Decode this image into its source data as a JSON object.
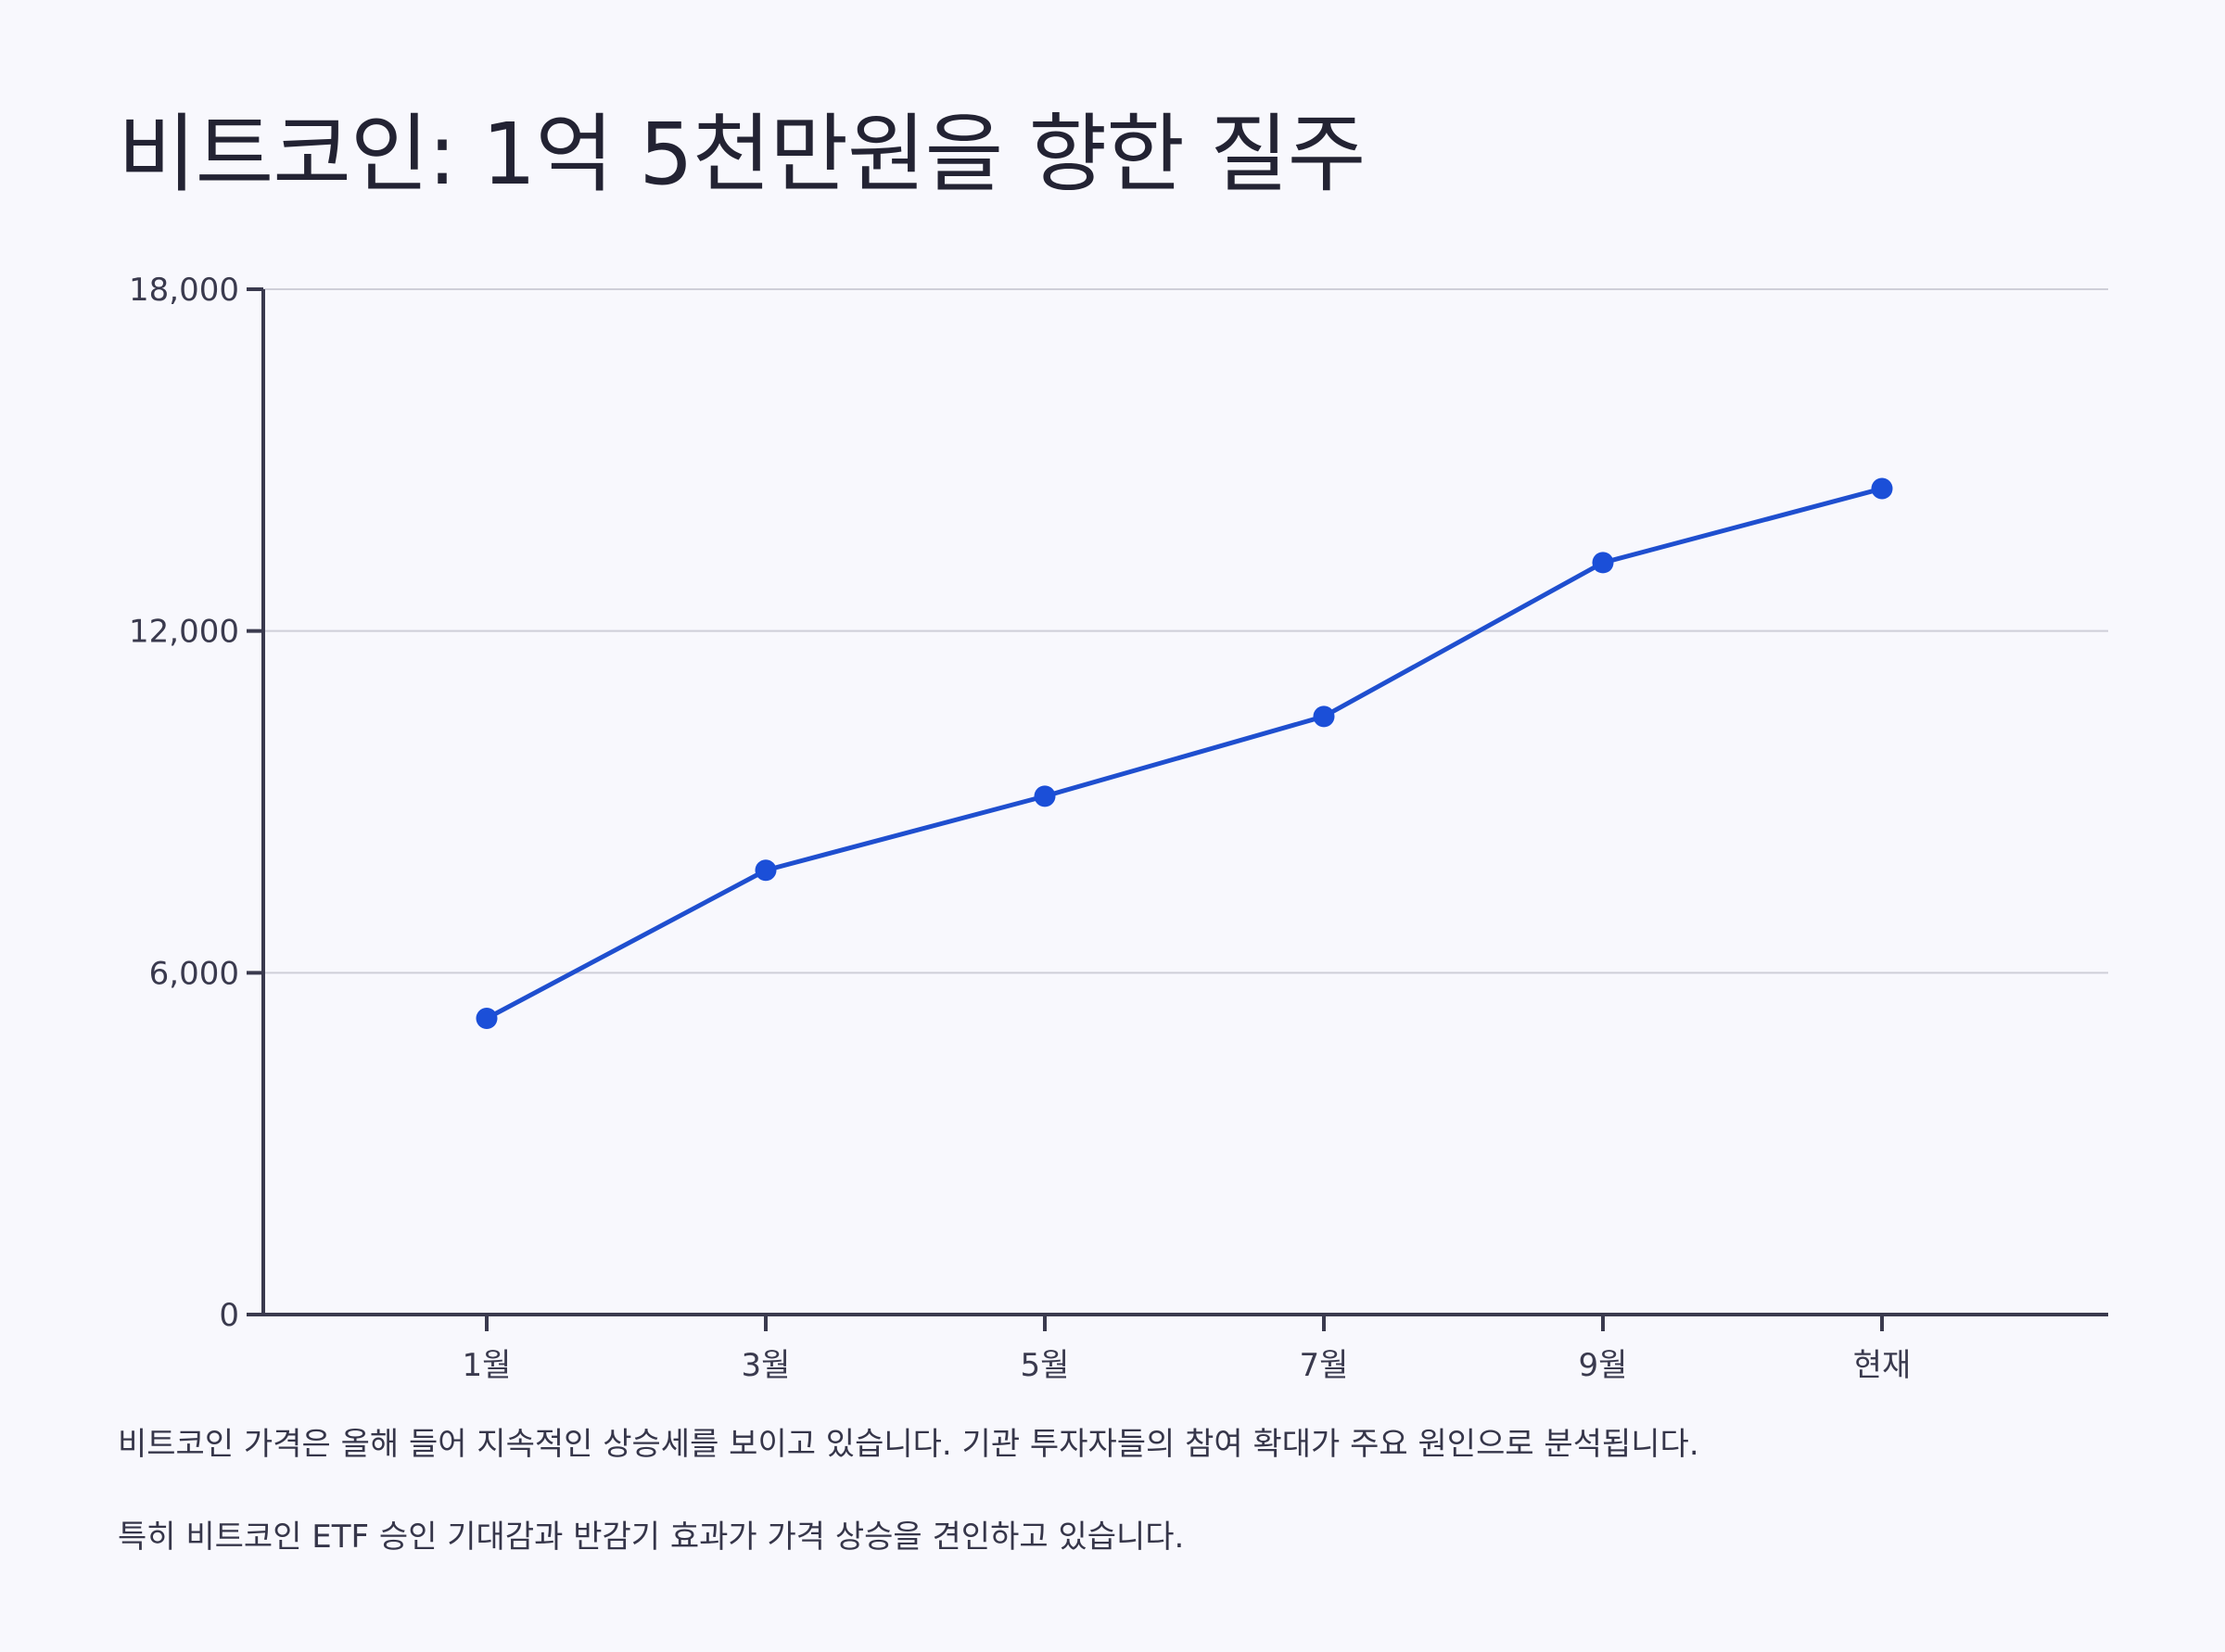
{
  "title": "비트코인: 1억 5천만원을 향한 질주",
  "captions": [
    "비트코인 가격은 올해 들어 지속적인 상승세를 보이고 있습니다. 기관 투자자들의 참여 확대가 주요 원인으로 분석됩니다.",
    "특히 비트코인 ETF 승인 기대감과 반감기 효과가 가격 상승을 견인하고 있습니다."
  ],
  "colors": {
    "line": "#1f4fcf",
    "point": "#1b4fd8",
    "axis": "#3a3a4e",
    "grid": "#cfcfd8"
  },
  "chart_data": {
    "type": "line",
    "title": "",
    "xlabel": "",
    "ylabel": "",
    "categories": [
      "1월",
      "3월",
      "5월",
      "7월",
      "9월",
      "현재"
    ],
    "values": [
      5200,
      7800,
      9100,
      10500,
      13200,
      14500
    ],
    "ylim": [
      0,
      18000
    ],
    "yticks": [
      0,
      6000,
      12000,
      18000
    ],
    "ytick_labels": [
      "0",
      "6,000",
      "12,000",
      "18,000"
    ],
    "grid": true,
    "legend": "none"
  }
}
